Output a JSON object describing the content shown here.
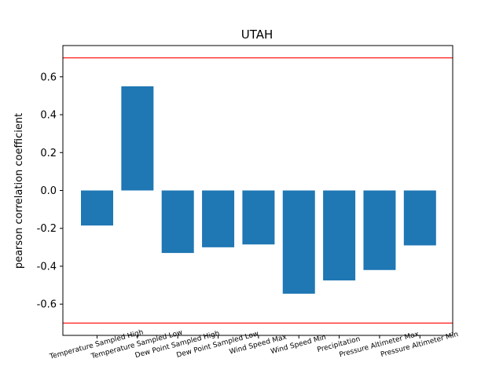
{
  "chart_data": {
    "type": "bar",
    "title": "UTAH",
    "xlabel": "",
    "ylabel": "pearson correlation coefficient",
    "categories": [
      "Temperature Sampled High",
      "Temperature Sampled Low",
      "Dew Point Sampled High",
      "Dew Point Sampled Low",
      "Wind Speed Max",
      "Wind Speed Min",
      "Precipitation",
      "Pressure Altimeter Max",
      "Pressure Altimeter Min"
    ],
    "values": [
      -0.185,
      0.55,
      -0.33,
      -0.3,
      -0.285,
      -0.545,
      -0.475,
      -0.42,
      -0.29
    ],
    "ylim": [
      -0.765,
      0.765
    ],
    "yticks": [
      "-0.6",
      "-0.4",
      "-0.2",
      "0.0",
      "0.2",
      "0.4",
      "0.6"
    ],
    "reference_lines": [
      0.7,
      -0.7
    ],
    "bar_color": "#1f77b4",
    "reference_line_color": "#ff0000",
    "grid": false,
    "legend": "none"
  }
}
